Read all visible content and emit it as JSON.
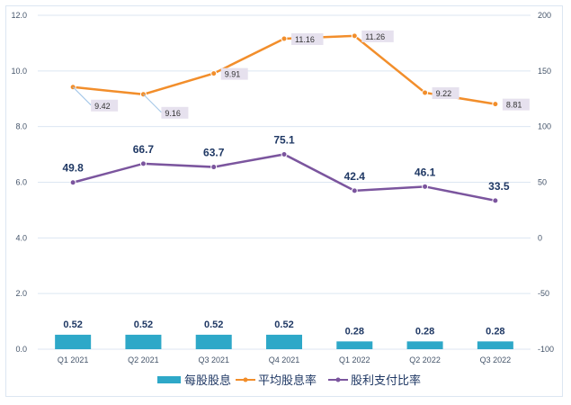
{
  "chart_data": {
    "type": "bar+line",
    "categories": [
      "Q1 2021",
      "Q2 2021",
      "Q3 2021",
      "Q4 2021",
      "Q1 2022",
      "Q2 2022",
      "Q3 2022"
    ],
    "y_left": {
      "range": [
        0,
        12
      ],
      "ticks": [
        "0.0",
        "2.0",
        "4.0",
        "6.0",
        "8.0",
        "10.0",
        "12.0"
      ]
    },
    "y_right": {
      "range": [
        -100,
        200
      ],
      "ticks": [
        "-100",
        "-50",
        "0",
        "50",
        "100",
        "150",
        "200"
      ]
    },
    "grid": true,
    "legend_position": "bottom",
    "series": [
      {
        "name": "每股股息",
        "type": "bar",
        "axis": "left",
        "color": "#2ea8c8",
        "values": [
          0.52,
          0.52,
          0.52,
          0.52,
          0.28,
          0.28,
          0.28
        ],
        "labels": [
          "0.52",
          "0.52",
          "0.52",
          "0.52",
          "0.28",
          "0.28",
          "0.28"
        ]
      },
      {
        "name": "平均股息率",
        "type": "line",
        "axis": "left",
        "color": "#f28e2b",
        "values": [
          9.42,
          9.16,
          9.91,
          11.16,
          11.26,
          9.22,
          8.81
        ],
        "labels": [
          "9.42",
          "9.16",
          "9.91",
          "11.16",
          "11.26",
          "9.22",
          "8.81"
        ]
      },
      {
        "name": "股利支付比率",
        "type": "line",
        "axis": "right",
        "color": "#7b559e",
        "values": [
          49.8,
          66.7,
          63.7,
          75.1,
          42.4,
          46.1,
          33.5
        ],
        "labels": [
          "49.8",
          "66.7",
          "63.7",
          "75.1",
          "42.4",
          "46.1",
          "33.5"
        ]
      }
    ]
  }
}
